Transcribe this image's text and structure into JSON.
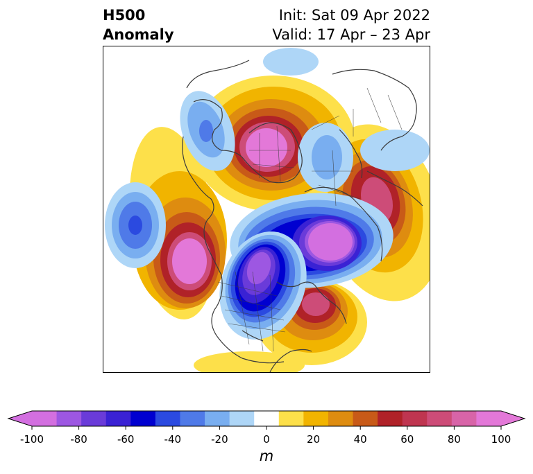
{
  "title": {
    "left_line1": "H500",
    "left_line2": "Anomaly",
    "right_line1": "Init: Sat 09 Apr 2022",
    "right_line2": "Valid: 17 Apr – 23 Apr"
  },
  "colorbar": {
    "unit_label": "m",
    "min": -100,
    "max": 100,
    "ticks": [
      -100,
      -80,
      -60,
      -40,
      -20,
      0,
      20,
      40,
      60,
      80,
      100
    ],
    "tick_labels": [
      "-100",
      "-80",
      "-60",
      "-40",
      "-20",
      "0",
      "20",
      "40",
      "60",
      "80",
      "100"
    ],
    "level_colors": [
      "#d36fe0",
      "#9d57e2",
      "#6a3bd9",
      "#3a22d4",
      "#0000d0",
      "#2b4ae0",
      "#4f7ae8",
      "#79aef0",
      "#aed6f7",
      "#ffffff",
      "#fde04a",
      "#f1b400",
      "#de8c10",
      "#c85a18",
      "#b02228",
      "#bf3550",
      "#cd4c78",
      "#d864a8",
      "#e378d8"
    ],
    "extend": "both"
  },
  "map": {
    "projection": "polar-stereographic",
    "region": "Northern Hemisphere / North America",
    "features": [
      "coastlines",
      "country-borders",
      "state-borders"
    ]
  }
}
